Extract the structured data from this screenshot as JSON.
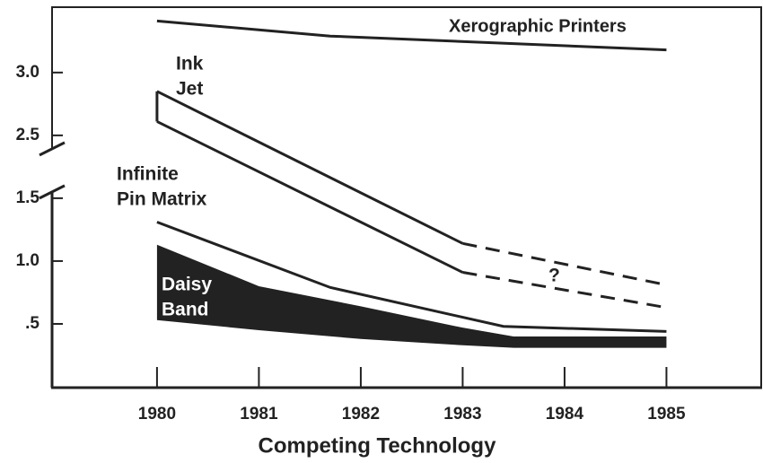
{
  "chart_data": {
    "type": "line",
    "x_label": "Competing Technology",
    "xlim": [
      1978.97,
      1985.93
    ],
    "xticks": [
      1980,
      1981,
      1982,
      1983,
      1984,
      1985
    ],
    "ylim": [
      0,
      3.52
    ],
    "yticks": [
      {
        "value": 0.5,
        "label": ".5"
      },
      {
        "value": 1,
        "label": "1.0"
      },
      1.5,
      2.5,
      {
        "value": 3,
        "label": "3.0"
      }
    ],
    "axis_break": [
      1.5,
      2.5
    ],
    "color": "#222222",
    "series": [
      {
        "name": "Xerographic Printers",
        "style": "line",
        "x": [
          1980,
          1981.7,
          1985
        ],
        "values": [
          3.41,
          3.29,
          3.18
        ]
      },
      {
        "name": "Ink Jet",
        "style": "band-outline",
        "projected_from": 1983,
        "x": [
          1980,
          1983,
          1985
        ],
        "upper": [
          2.85,
          1.14,
          0.81
        ],
        "lower": [
          2.61,
          0.91,
          0.63
        ]
      },
      {
        "name": "Infinite Pin Matrix",
        "style": "line",
        "x": [
          1980,
          1981.7,
          1983.4,
          1985
        ],
        "values": [
          1.31,
          0.79,
          0.48,
          0.44
        ]
      },
      {
        "name": "Daisy Band",
        "style": "band-filled",
        "x": [
          1980,
          1981,
          1982,
          1983,
          1983.5,
          1985
        ],
        "upper": [
          1.13,
          0.8,
          0.64,
          0.47,
          0.4,
          0.4
        ],
        "lower": [
          0.53,
          0.45,
          0.38,
          0.33,
          0.31,
          0.31
        ]
      }
    ],
    "annotations": [
      {
        "text": [
          "Xerographic Printers"
        ]
      },
      {
        "text": [
          "Ink",
          "Jet"
        ]
      },
      {
        "text": [
          "Infinite",
          "Pin Matrix"
        ]
      },
      {
        "text": [
          "Daisy",
          "Band"
        ]
      },
      {
        "text": [
          "?"
        ]
      }
    ]
  }
}
